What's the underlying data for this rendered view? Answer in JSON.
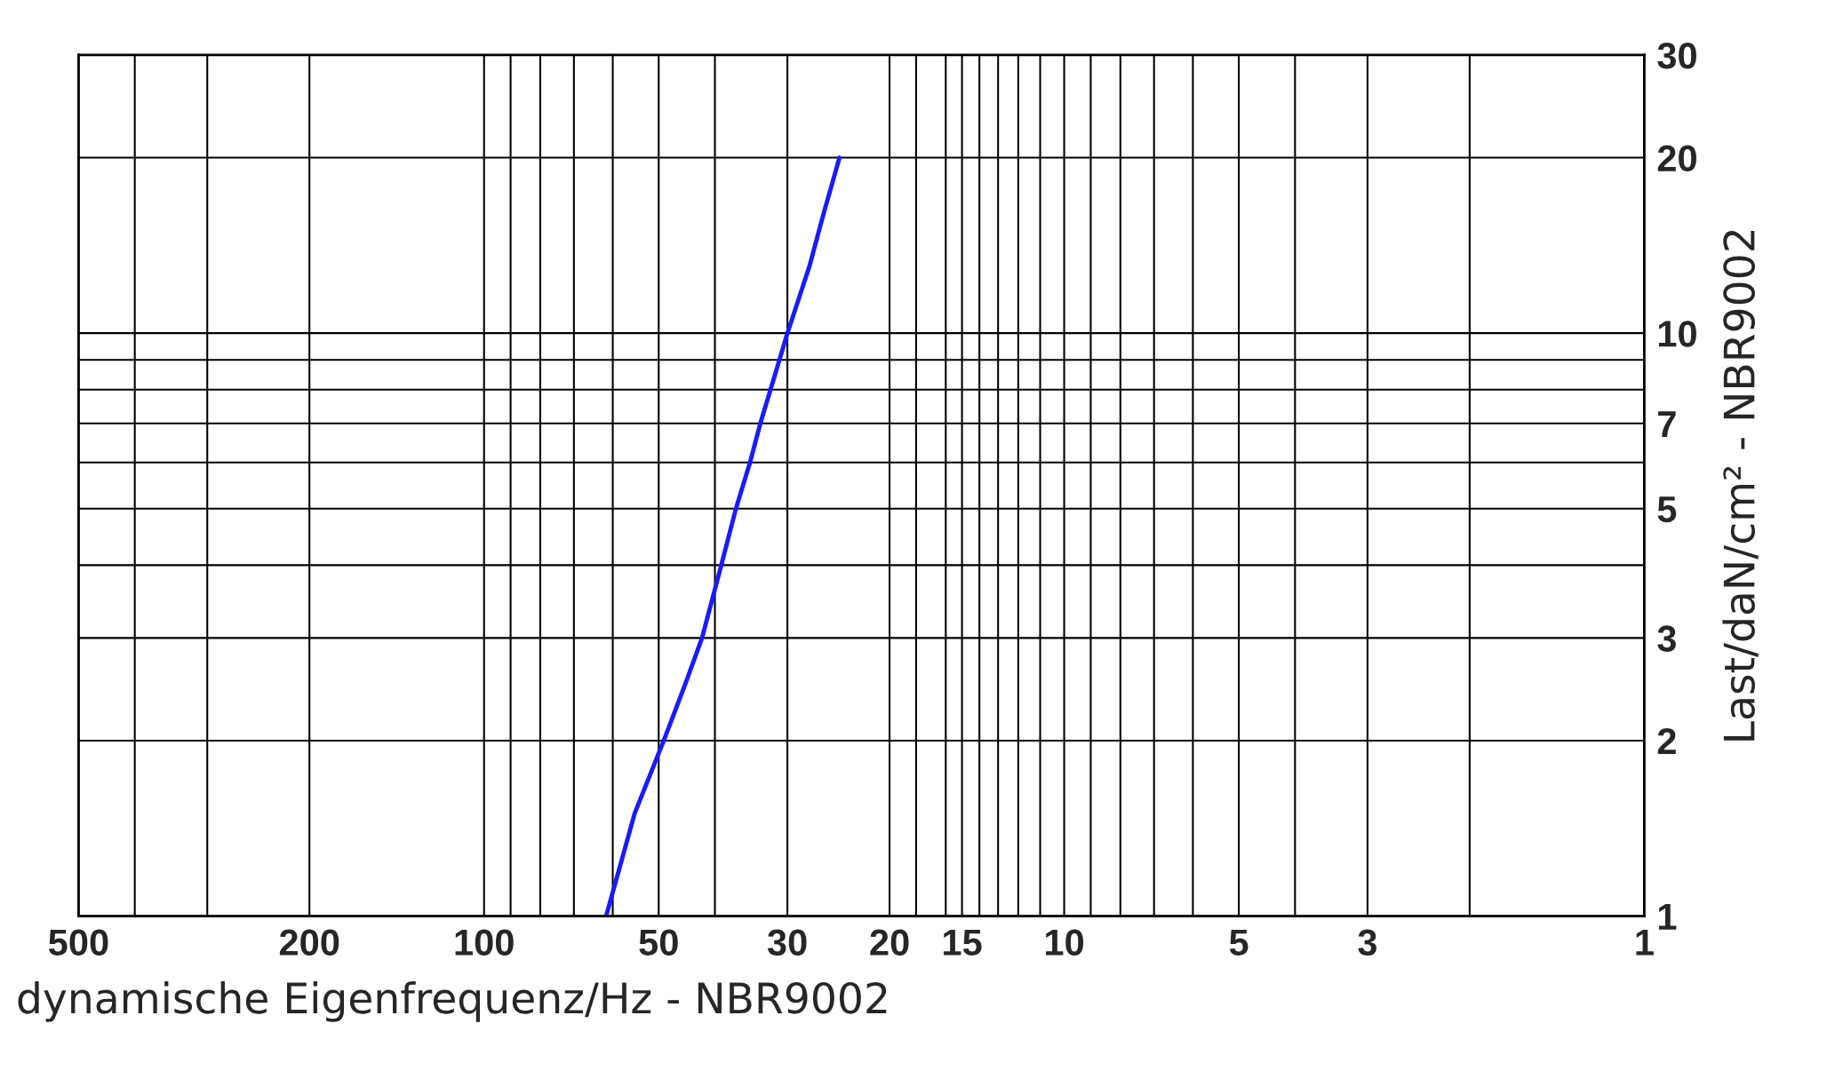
{
  "chart_data": {
    "type": "line",
    "xlabel": "dynamische Eigenfrequenz/Hz - NBR9002",
    "ylabel": "Last/daN/cm² - NBR9002",
    "log": "xy",
    "grid": true,
    "marker": "none",
    "line_style": "solid",
    "xlim": [
      500,
      1
    ],
    "ylim": [
      1,
      30
    ],
    "xticks": [
      500,
      {
        "value": 400,
        "label": null
      },
      {
        "value": 300,
        "label": null
      },
      200,
      100,
      {
        "value": 90,
        "label": null
      },
      {
        "value": 80,
        "label": null
      },
      {
        "value": 70,
        "label": null
      },
      {
        "value": 60,
        "label": null
      },
      50,
      {
        "value": 40,
        "label": null
      },
      30,
      20,
      {
        "value": 18,
        "label": null
      },
      {
        "value": 16,
        "label": null
      },
      15,
      {
        "value": 14,
        "label": null
      },
      {
        "value": 13,
        "label": null
      },
      {
        "value": 12,
        "label": null
      },
      {
        "value": 11,
        "label": null
      },
      10,
      {
        "value": 9,
        "label": null
      },
      {
        "value": 8,
        "label": null
      },
      {
        "value": 7,
        "label": null
      },
      {
        "value": 6,
        "label": null
      },
      5,
      {
        "value": 4,
        "label": null
      },
      3,
      {
        "value": 2,
        "label": null
      },
      1
    ],
    "yticks": [
      1,
      2,
      3,
      {
        "value": 4,
        "label": null
      },
      5,
      {
        "value": 6,
        "label": null
      },
      7,
      {
        "value": 8,
        "label": null
      },
      {
        "value": 9,
        "label": null
      },
      10,
      20,
      30
    ],
    "series": [
      {
        "color": "#1a1aff",
        "x": [
          61.6,
          55,
          49,
          45,
          42.1,
          39,
          36.8,
          34.8,
          33.4,
          31.5,
          30,
          27.5,
          26,
          24.4
        ],
        "values": [
          1,
          1.5,
          2,
          2.5,
          3,
          4,
          5,
          6,
          7,
          8.5,
          10,
          13,
          16,
          20
        ]
      }
    ]
  }
}
